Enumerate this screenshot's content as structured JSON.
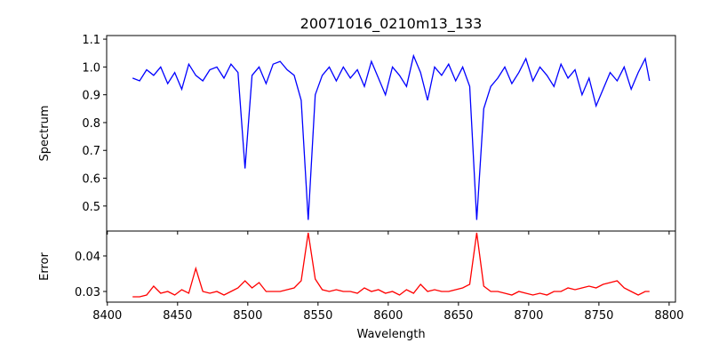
{
  "chart_data": [
    {
      "type": "line",
      "title": "20071016_0210m13_133",
      "xlabel": "",
      "ylabel": "Spectrum",
      "xlim": [
        8399.5,
        8804.5
      ],
      "ylim": [
        0.41,
        1.113
      ],
      "xticks": [
        8400,
        8450,
        8500,
        8550,
        8600,
        8650,
        8700,
        8750,
        8800
      ],
      "yticks": [
        0.5,
        0.6,
        0.7,
        0.8,
        0.9,
        1.0,
        1.1
      ],
      "ytick_labels": [
        "0.5",
        "0.6",
        "0.7",
        "0.8",
        "0.9",
        "1.0",
        "1.1"
      ],
      "color": "#0000ff",
      "x": [
        8418,
        8423,
        8428,
        8433,
        8438,
        8443,
        8448,
        8453,
        8458,
        8463,
        8468,
        8473,
        8478,
        8483,
        8488,
        8493,
        8498,
        8503,
        8508,
        8513,
        8518,
        8523,
        8528,
        8533,
        8538,
        8543,
        8548,
        8553,
        8558,
        8563,
        8568,
        8573,
        8578,
        8583,
        8588,
        8593,
        8598,
        8603,
        8608,
        8613,
        8618,
        8623,
        8628,
        8633,
        8638,
        8643,
        8648,
        8653,
        8658,
        8663,
        8668,
        8673,
        8678,
        8683,
        8688,
        8693,
        8698,
        8703,
        8708,
        8713,
        8718,
        8723,
        8728,
        8733,
        8738,
        8743,
        8748,
        8753,
        8758,
        8763,
        8768,
        8773,
        8778,
        8783,
        8786
      ],
      "y": [
        0.96,
        0.95,
        0.99,
        0.97,
        1.0,
        0.94,
        0.98,
        0.92,
        1.01,
        0.97,
        0.95,
        0.99,
        1.0,
        0.96,
        1.01,
        0.98,
        0.635,
        0.97,
        1.0,
        0.94,
        1.01,
        1.02,
        0.99,
        0.97,
        0.88,
        0.45,
        0.9,
        0.97,
        1.0,
        0.95,
        1.0,
        0.96,
        0.99,
        0.93,
        1.02,
        0.96,
        0.9,
        1.0,
        0.97,
        0.93,
        1.04,
        0.98,
        0.88,
        1.0,
        0.97,
        1.01,
        0.95,
        1.0,
        0.93,
        0.45,
        0.85,
        0.93,
        0.96,
        1.0,
        0.94,
        0.98,
        1.03,
        0.95,
        1.0,
        0.97,
        0.93,
        1.01,
        0.96,
        0.99,
        0.9,
        0.96,
        0.86,
        0.92,
        0.98,
        0.95,
        1.0,
        0.92,
        0.98,
        1.03,
        0.95
      ]
    },
    {
      "type": "line",
      "title": "",
      "xlabel": "Wavelength",
      "ylabel": "Error",
      "xlim": [
        8399.5,
        8804.5
      ],
      "ylim": [
        0.027,
        0.047
      ],
      "xticks": [
        8400,
        8450,
        8500,
        8550,
        8600,
        8650,
        8700,
        8750,
        8800
      ],
      "yticks": [
        0.03,
        0.04
      ],
      "ytick_labels": [
        "0.03",
        "0.04"
      ],
      "color": "#ff0000",
      "x": [
        8418,
        8423,
        8428,
        8433,
        8438,
        8443,
        8448,
        8453,
        8458,
        8463,
        8468,
        8473,
        8478,
        8483,
        8488,
        8493,
        8498,
        8503,
        8508,
        8513,
        8518,
        8523,
        8528,
        8533,
        8538,
        8543,
        8548,
        8553,
        8558,
        8563,
        8568,
        8573,
        8578,
        8583,
        8588,
        8593,
        8598,
        8603,
        8608,
        8613,
        8618,
        8623,
        8628,
        8633,
        8638,
        8643,
        8648,
        8653,
        8658,
        8663,
        8668,
        8673,
        8678,
        8683,
        8688,
        8693,
        8698,
        8703,
        8708,
        8713,
        8718,
        8723,
        8728,
        8733,
        8738,
        8743,
        8748,
        8753,
        8758,
        8763,
        8768,
        8773,
        8778,
        8783,
        8786
      ],
      "y": [
        0.0285,
        0.0285,
        0.029,
        0.0315,
        0.0295,
        0.03,
        0.029,
        0.0305,
        0.0295,
        0.0365,
        0.03,
        0.0295,
        0.03,
        0.029,
        0.03,
        0.031,
        0.033,
        0.031,
        0.0325,
        0.03,
        0.03,
        0.03,
        0.0305,
        0.031,
        0.033,
        0.0465,
        0.0335,
        0.0305,
        0.03,
        0.0305,
        0.03,
        0.03,
        0.0295,
        0.031,
        0.03,
        0.0305,
        0.0295,
        0.03,
        0.029,
        0.0305,
        0.0295,
        0.032,
        0.03,
        0.0305,
        0.03,
        0.03,
        0.0305,
        0.031,
        0.032,
        0.0465,
        0.0315,
        0.03,
        0.03,
        0.0295,
        0.029,
        0.03,
        0.0295,
        0.029,
        0.0295,
        0.029,
        0.03,
        0.03,
        0.031,
        0.0305,
        0.031,
        0.0315,
        0.031,
        0.032,
        0.0325,
        0.033,
        0.031,
        0.03,
        0.029,
        0.03,
        0.03
      ]
    }
  ]
}
